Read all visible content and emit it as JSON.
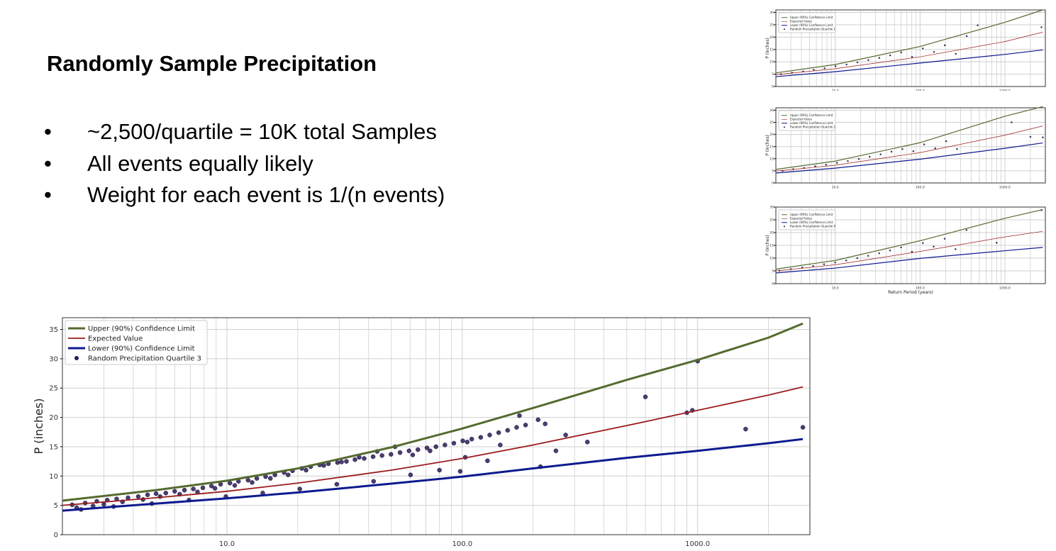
{
  "slide": {
    "title": "Randomly Sample Precipitation",
    "bullet_symbol": "•",
    "bullets": [
      "~2,500/quartile = 10K total Samples",
      "All events equally likely",
      "Weight for each event is 1/(n events)"
    ]
  },
  "colors": {
    "upper": "#556b2f",
    "expected": "#9b1c1c",
    "lower": "#0d1a8f",
    "points": "#2b1b57",
    "grid": "#cfcfcf"
  },
  "chart_data": [
    {
      "id": "main",
      "type": "scatter",
      "title": "",
      "xlabel": "",
      "ylabel": "P (inches)",
      "x_scale": "log",
      "xlim": [
        2,
        3000
      ],
      "ylim": [
        0,
        37
      ],
      "xticks": [
        10,
        100,
        1000
      ],
      "xtick_labels": [
        "10.0",
        "100.0",
        "1000.0"
      ],
      "yticks": [
        0,
        5,
        10,
        15,
        20,
        25,
        30,
        35
      ],
      "grid": true,
      "legend_position": "top-left",
      "series": [
        {
          "name": "Upper (90%) Confidence Limit",
          "kind": "line",
          "color": "#556b2f",
          "x": [
            2,
            5,
            10,
            20,
            50,
            100,
            200,
            500,
            1000,
            2000,
            2800
          ],
          "y": [
            5.8,
            7.6,
            9.2,
            11.3,
            14.9,
            18.1,
            21.6,
            26.4,
            29.8,
            33.6,
            36.0
          ]
        },
        {
          "name": "Expected Value",
          "kind": "line",
          "color": "#9b1c1c",
          "x": [
            2,
            5,
            10,
            20,
            50,
            100,
            200,
            500,
            1000,
            2000,
            2800
          ],
          "y": [
            5.0,
            6.3,
            7.4,
            8.8,
            11.0,
            13.0,
            15.3,
            18.6,
            21.2,
            23.8,
            25.2
          ]
        },
        {
          "name": "Lower (90%) Confidence Limit",
          "kind": "line",
          "color": "#0d1a8f",
          "x": [
            2,
            5,
            10,
            20,
            50,
            100,
            200,
            500,
            1000,
            2000,
            2800
          ],
          "y": [
            4.1,
            5.3,
            6.2,
            7.2,
            8.7,
            9.9,
            11.3,
            13.1,
            14.3,
            15.6,
            16.3
          ]
        },
        {
          "name": "Random Precipitation Quartile 3",
          "kind": "scatter",
          "color": "#2b1b57",
          "x": [
            2.2,
            2.5,
            2.8,
            3.1,
            3.4,
            3.8,
            4.2,
            4.6,
            5.0,
            5.5,
            6.0,
            6.6,
            7.2,
            7.9,
            8.6,
            9.4,
            10.3,
            11.2,
            12.3,
            13.4,
            14.6,
            16.0,
            17.5,
            19.0,
            20.8,
            22.7,
            24.8,
            27.0,
            29.5,
            32.2,
            35.0,
            38.3,
            41.8,
            45.6,
            49.8,
            54.4,
            59.4,
            64.8,
            70.8,
            77.3,
            84.4,
            92.1,
            100.5,
            109.7,
            119.8,
            130.8,
            142.8,
            155.9,
            170.2,
            185.8,
            2.3,
            2.7,
            3.0,
            3.6,
            4.4,
            5.2,
            6.3,
            7.5,
            8.9,
            10.8,
            12.8,
            15.3,
            18.2,
            21.7,
            25.8,
            30.7,
            36.5,
            43.5,
            51.8,
            61.6,
            2.4,
            3.3,
            4.8,
            6.9,
            9.9,
            14.2,
            20.4,
            29.3,
            42.0,
            60.3,
            73,
            80,
            98,
            103,
            105,
            128,
            145,
            175,
            210,
            215,
            225,
            250,
            275,
            340,
            600,
            900,
            950,
            1000,
            1600,
            2800
          ],
          "y": [
            5.1,
            5.4,
            5.7,
            5.9,
            6.1,
            6.3,
            6.5,
            6.8,
            7.0,
            7.1,
            7.4,
            7.6,
            7.8,
            8.0,
            8.3,
            8.6,
            8.8,
            9.1,
            9.3,
            9.6,
            9.9,
            10.2,
            10.6,
            10.9,
            11.3,
            11.6,
            11.9,
            12.1,
            12.3,
            12.5,
            12.8,
            13.0,
            13.3,
            13.5,
            13.7,
            14.0,
            14.3,
            14.5,
            14.8,
            15.0,
            15.3,
            15.6,
            16.0,
            16.3,
            16.6,
            17.0,
            17.4,
            17.8,
            18.3,
            18.7,
            4.6,
            4.9,
            5.2,
            5.6,
            6.0,
            6.5,
            6.9,
            7.3,
            7.9,
            8.4,
            8.9,
            9.6,
            10.2,
            11.0,
            11.8,
            12.4,
            13.2,
            14.2,
            15.0,
            13.6,
            4.3,
            4.8,
            5.3,
            5.9,
            6.5,
            7.1,
            7.8,
            8.6,
            9.1,
            10.2,
            14.3,
            11.0,
            10.8,
            13.2,
            15.8,
            12.6,
            15.3,
            20.3,
            19.6,
            11.6,
            18.9,
            14.3,
            17.0,
            15.8,
            23.5,
            20.8,
            21.2,
            29.6,
            18.0,
            18.3
          ]
        }
      ]
    },
    {
      "id": "mini-1",
      "type": "scatter",
      "title": "",
      "xlabel": "",
      "ylabel": "P (inches)",
      "x_scale": "log",
      "xlim": [
        2,
        3000
      ],
      "ylim": [
        0,
        31
      ],
      "xticks": [
        10,
        100,
        1000
      ],
      "xtick_labels": [
        "10.0",
        "100.0",
        "1000.0"
      ],
      "yticks": [
        0,
        5,
        10,
        15,
        20,
        25,
        30
      ],
      "grid": true,
      "legend_position": "top-left",
      "series": [
        {
          "name": "Upper (90%) Confidence Limit",
          "kind": "line",
          "color": "#556b2f",
          "x": [
            2,
            10,
            100,
            1000,
            2800
          ],
          "y": [
            5.5,
            8.9,
            16.2,
            26.0,
            31.0
          ]
        },
        {
          "name": "Expected Value",
          "kind": "line",
          "color": "#9b1c1c",
          "x": [
            2,
            10,
            100,
            1000,
            2800
          ],
          "y": [
            4.8,
            7.2,
            12.0,
            18.2,
            22.0
          ]
        },
        {
          "name": "Lower (90%) Confidence Limit",
          "kind": "line",
          "color": "#0d1a8f",
          "x": [
            2,
            10,
            100,
            1000,
            2800
          ],
          "y": [
            4.0,
            6.0,
            9.5,
            13.0,
            14.8
          ]
        },
        {
          "name": "Random Precipitation Quartile 1",
          "kind": "scatter",
          "color": "#2b1b57",
          "x": [
            2.3,
            3.1,
            4.2,
            5.6,
            7.5,
            10.1,
            13.6,
            18.3,
            24.6,
            33.1,
            44.5,
            59.9,
            80.5,
            108,
            146,
            196,
            264,
            355,
            478,
            2700
          ],
          "y": [
            5.0,
            5.6,
            6.1,
            6.8,
            7.4,
            8.2,
            8.9,
            9.8,
            10.7,
            11.6,
            12.6,
            13.8,
            12.0,
            15.4,
            14.0,
            16.7,
            13.2,
            20.4,
            24.8,
            24.0
          ]
        }
      ]
    },
    {
      "id": "mini-2",
      "type": "scatter",
      "title": "",
      "xlabel": "",
      "ylabel": "P (inches)",
      "x_scale": "log",
      "xlim": [
        2,
        3000
      ],
      "ylim": [
        0,
        31
      ],
      "xticks": [
        10,
        100,
        1000
      ],
      "xtick_labels": [
        "10.0",
        "100.0",
        "1000.0"
      ],
      "yticks": [
        0,
        5,
        10,
        15,
        20,
        25,
        30
      ],
      "grid": true,
      "legend_position": "top-left",
      "series": [
        {
          "name": "Upper (90%) Confidence Limit",
          "kind": "line",
          "color": "#556b2f",
          "x": [
            2,
            10,
            100,
            1000,
            2800
          ],
          "y": [
            5.6,
            9.0,
            16.6,
            27.5,
            31.5
          ]
        },
        {
          "name": "Expected Value",
          "kind": "line",
          "color": "#9b1c1c",
          "x": [
            2,
            10,
            100,
            1000,
            2800
          ],
          "y": [
            4.9,
            7.3,
            12.5,
            19.7,
            23.5
          ]
        },
        {
          "name": "Lower (90%) Confidence Limit",
          "kind": "line",
          "color": "#0d1a8f",
          "x": [
            2,
            10,
            100,
            1000,
            2800
          ],
          "y": [
            4.1,
            6.1,
            9.8,
            14.3,
            16.5
          ]
        },
        {
          "name": "Random Precipitation Quartile 2",
          "kind": "scatter",
          "color": "#2b1b57",
          "x": [
            2.4,
            3.2,
            4.3,
            5.8,
            7.8,
            10.5,
            14.1,
            19.0,
            25.5,
            34.3,
            46.1,
            62.0,
            83.4,
            112,
            151,
            203,
            273,
            1200,
            2000,
            2800
          ],
          "y": [
            5.0,
            5.7,
            6.2,
            6.9,
            7.5,
            8.3,
            9.0,
            9.9,
            10.8,
            11.8,
            12.9,
            14.0,
            13.1,
            15.9,
            14.3,
            17.2,
            14.0,
            25.0,
            19.0,
            18.8
          ]
        }
      ]
    },
    {
      "id": "mini-4",
      "type": "scatter",
      "title": "",
      "xlabel": "Return Period (years)",
      "ylabel": "P (inches)",
      "x_scale": "log",
      "xlim": [
        2,
        3000
      ],
      "ylim": [
        0,
        30
      ],
      "xticks": [
        10,
        100,
        1000
      ],
      "xtick_labels": [
        "10.0",
        "100.0",
        "1000.0"
      ],
      "yticks": [
        0,
        5,
        10,
        15,
        20,
        25,
        30
      ],
      "grid": true,
      "legend_position": "top-left",
      "series": [
        {
          "name": "Upper (90%) Confidence Limit",
          "kind": "line",
          "color": "#556b2f",
          "x": [
            2,
            10,
            100,
            1000,
            2800
          ],
          "y": [
            5.7,
            9.1,
            16.8,
            25.6,
            29.0
          ]
        },
        {
          "name": "Expected Value",
          "kind": "line",
          "color": "#9b1c1c",
          "x": [
            2,
            10,
            100,
            1000,
            2800
          ],
          "y": [
            5.0,
            7.4,
            12.6,
            18.3,
            20.5
          ]
        },
        {
          "name": "Lower (90%) Confidence Limit",
          "kind": "line",
          "color": "#0d1a8f",
          "x": [
            2,
            10,
            100,
            1000,
            2800
          ],
          "y": [
            4.2,
            6.1,
            9.9,
            12.9,
            14.2
          ]
        },
        {
          "name": "Random Precipitation Quartile 4",
          "kind": "scatter",
          "color": "#2b1b57",
          "x": [
            2.2,
            3.0,
            4.1,
            5.5,
            7.4,
            10.0,
            13.5,
            18.2,
            24.5,
            33.0,
            44.4,
            59.8,
            80.4,
            108,
            145,
            195,
            262,
            353,
            800,
            2700
          ],
          "y": [
            5.1,
            5.7,
            6.3,
            6.9,
            7.6,
            8.3,
            9.1,
            10.0,
            10.9,
            11.9,
            13.0,
            14.2,
            12.5,
            15.9,
            14.5,
            17.6,
            13.5,
            21.0,
            16.0,
            28.8
          ]
        }
      ]
    }
  ]
}
